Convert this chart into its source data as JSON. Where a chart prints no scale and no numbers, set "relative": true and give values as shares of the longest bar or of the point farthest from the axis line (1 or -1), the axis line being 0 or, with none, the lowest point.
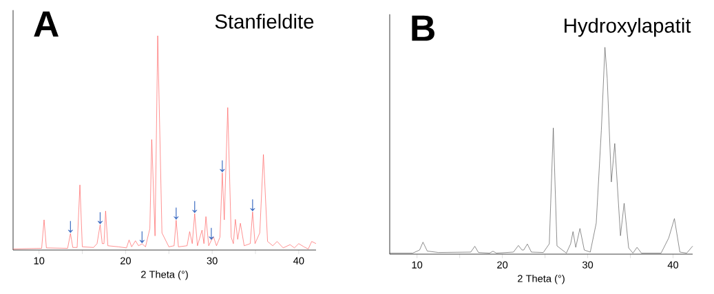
{
  "chart_data": [
    {
      "type": "line",
      "title": "A",
      "subtitle": "Stanfieldite",
      "xlabel": "2 Theta (°)",
      "relative": true,
      "color": "#ff5a5a",
      "xlim": [
        7,
        42
      ],
      "xticks": [
        10,
        {
          "value": 15,
          "label": null
        },
        20,
        {
          "value": 25,
          "label": null
        },
        30,
        {
          "value": 35,
          "label": null
        },
        40
      ],
      "x": [
        7,
        10.3,
        10.58,
        10.85,
        13.3,
        13.63,
        13.9,
        14.4,
        14.72,
        15.0,
        16.3,
        16.7,
        17.06,
        17.3,
        17.5,
        17.69,
        17.95,
        19.2,
        20.1,
        20.4,
        20.7,
        21.14,
        21.5,
        21.9,
        22.3,
        22.8,
        23.02,
        23.4,
        23.71,
        24.2,
        25.0,
        25.6,
        25.84,
        26.1,
        27.1,
        27.4,
        27.7,
        27.98,
        28.3,
        28.83,
        29.05,
        29.28,
        29.6,
        29.9,
        30.16,
        30.5,
        30.9,
        31.17,
        31.4,
        31.8,
        32.2,
        32.45,
        32.68,
        32.95,
        33.26,
        33.7,
        34.4,
        34.67,
        34.95,
        35.5,
        35.92,
        36.4,
        37.0,
        37.5,
        38.2,
        39.0,
        39.5,
        40.0,
        40.6,
        41.1,
        41.5,
        42.0
      ],
      "values": [
        0.005,
        0.008,
        0.141,
        0.01,
        0.008,
        0.077,
        0.012,
        0.012,
        0.304,
        0.015,
        0.012,
        0.03,
        0.118,
        0.03,
        0.03,
        0.182,
        0.02,
        0.015,
        0.01,
        0.047,
        0.015,
        0.043,
        0.02,
        0.029,
        0.015,
        0.1,
        0.516,
        0.066,
        1,
        0.08,
        0.015,
        0.02,
        0.139,
        0.015,
        0.02,
        0.086,
        0.03,
        0.17,
        0.02,
        0.093,
        0.03,
        0.156,
        0.02,
        0.045,
        0.061,
        0.02,
        0.06,
        0.36,
        0.141,
        0.665,
        0.06,
        0.03,
        0.143,
        0.05,
        0.125,
        0.02,
        0.03,
        0.178,
        0.03,
        0.08,
        0.446,
        0.04,
        0.02,
        0.04,
        0.01,
        0.025,
        0.01,
        0.03,
        0.015,
        0.005,
        0.04,
        0.03
      ],
      "annotations": [
        {
          "text": "↓",
          "x": 13.63,
          "y": 0.077
        },
        {
          "text": "↓",
          "x": 17.06,
          "y": 0.118
        },
        {
          "text": "↓",
          "x": 21.9,
          "y": 0.029
        },
        {
          "text": "↓",
          "x": 25.84,
          "y": 0.139
        },
        {
          "text": "↓",
          "x": 27.98,
          "y": 0.17
        },
        {
          "text": "↓",
          "x": 29.9,
          "y": 0.045
        },
        {
          "text": "↓",
          "x": 31.17,
          "y": 0.36
        },
        {
          "text": "↓",
          "x": 34.67,
          "y": 0.178
        }
      ]
    },
    {
      "type": "line",
      "title": "B",
      "subtitle": "Hydroxylapatit",
      "xlabel": "2 Theta (°)",
      "relative": true,
      "color": "#555555",
      "xlim": [
        6.8,
        42.3
      ],
      "xticks": [
        10,
        {
          "value": 15,
          "label": null
        },
        20,
        {
          "value": 25,
          "label": null
        },
        30,
        {
          "value": 35,
          "label": null
        },
        40
      ],
      "x": [
        6.8,
        9.5,
        10.3,
        10.7,
        11.2,
        12.5,
        16.3,
        16.77,
        17.2,
        18.5,
        18.9,
        19.3,
        21.3,
        21.88,
        22.3,
        22.5,
        22.93,
        23.4,
        24.8,
        25.5,
        25.97,
        26.4,
        27.5,
        28.0,
        28.28,
        28.6,
        29.09,
        29.6,
        30.3,
        31.0,
        31.6,
        32.02,
        32.29,
        32.77,
        33.17,
        33.84,
        34.27,
        34.8,
        35.3,
        35.78,
        36.3,
        38.6,
        39.49,
        40.16,
        40.8,
        41.6,
        42.3
      ],
      "values": [
        0.005,
        0.005,
        0.02,
        0.058,
        0.015,
        0.008,
        0.01,
        0.038,
        0.008,
        0.005,
        0.014,
        0.005,
        0.01,
        0.042,
        0.02,
        0.02,
        0.049,
        0.01,
        0.008,
        0.05,
        0.61,
        0.04,
        0.005,
        0.05,
        0.109,
        0.033,
        0.124,
        0.02,
        0.01,
        0.15,
        0.6,
        1,
        0.848,
        0.349,
        0.535,
        0.089,
        0.246,
        0.03,
        0.005,
        0.033,
        0.005,
        0.005,
        0.078,
        0.172,
        0.01,
        0.005,
        0.039
      ]
    }
  ]
}
